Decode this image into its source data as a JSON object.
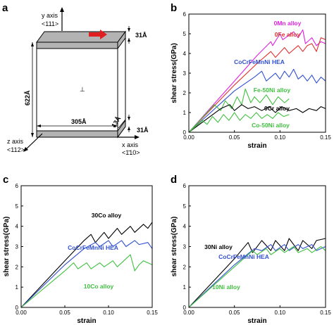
{
  "schematic": {
    "label": "a",
    "y_axis": "y axis",
    "y_dir": "<111>",
    "z_axis": "z axis",
    "z_dir": "<112>",
    "x_axis": "x axis",
    "x_dir": "<1̄10>",
    "height": "622Å",
    "width": "305Å",
    "depth": "13Å",
    "top_slab": "31Å",
    "bottom_slab": "31Å",
    "dislocation": "⊥",
    "colors": {
      "slab": "#b3b3b3",
      "arrow": "#e02020"
    }
  },
  "chart_data": [
    {
      "label": "b",
      "type": "line",
      "xlabel": "strain",
      "ylabel": "shear stress(GPa)",
      "xlim": [
        0,
        0.15
      ],
      "ylim": [
        0,
        6
      ],
      "xticks": [
        "0.00",
        "0.05",
        "0.10",
        "0.15"
      ],
      "yticks": [
        "0",
        "1",
        "2",
        "3",
        "4",
        "5",
        "6"
      ],
      "series": [
        {
          "name": "0Mn alloy",
          "color": "#e020e0",
          "x": [
            0,
            0.05,
            0.075,
            0.09,
            0.092,
            0.1,
            0.103,
            0.115,
            0.12,
            0.125,
            0.128,
            0.135,
            0.14,
            0.145,
            0.15
          ],
          "y": [
            0,
            2.6,
            3.9,
            4.6,
            4.4,
            5.0,
            4.7,
            5.1,
            4.8,
            5.2,
            4.5,
            4.8,
            4.4,
            4.6,
            4.5
          ]
        },
        {
          "name": "0Fe alloy",
          "color": "#e03030",
          "x": [
            0,
            0.05,
            0.075,
            0.09,
            0.095,
            0.105,
            0.11,
            0.12,
            0.125,
            0.13,
            0.135,
            0.14,
            0.145,
            0.15
          ],
          "y": [
            0,
            2.4,
            3.5,
            4.1,
            3.8,
            4.3,
            4.0,
            4.4,
            4.1,
            4.4,
            4.5,
            4.1,
            4.8,
            4.7
          ]
        },
        {
          "name": "CoCrFeMnNi HEA",
          "color": "#3050d0",
          "x": [
            0,
            0.05,
            0.072,
            0.08,
            0.085,
            0.095,
            0.1,
            0.105,
            0.11,
            0.115,
            0.12,
            0.125,
            0.13,
            0.135,
            0.14,
            0.145,
            0.15
          ],
          "y": [
            0,
            2.1,
            2.8,
            3.1,
            2.6,
            3.0,
            2.7,
            3.1,
            2.8,
            3.2,
            2.7,
            2.9,
            2.6,
            2.9,
            2.5,
            2.8,
            2.6
          ]
        },
        {
          "name": "Fe-50Ni alloy",
          "color": "#40c040",
          "x": [
            0,
            0.02,
            0.028,
            0.035,
            0.04,
            0.047,
            0.053,
            0.058,
            0.062,
            0.068,
            0.072,
            0.078,
            0.085,
            0.092,
            0.098,
            0.105,
            0.11
          ],
          "y": [
            0,
            1.0,
            1.4,
            1.1,
            1.6,
            1.2,
            1.8,
            1.4,
            2.2,
            1.5,
            1.8,
            1.5,
            1.9,
            1.4,
            1.8,
            1.5,
            1.7
          ]
        },
        {
          "name": "0Cr alloy",
          "color": "#000000",
          "x": [
            0,
            0.035,
            0.045,
            0.05,
            0.058,
            0.065,
            0.072,
            0.08,
            0.088,
            0.095,
            0.102,
            0.11,
            0.118,
            0.125,
            0.132,
            0.14,
            0.145,
            0.15
          ],
          "y": [
            0,
            1.2,
            1.4,
            1.1,
            1.4,
            1.2,
            1.3,
            1.1,
            1.3,
            1.0,
            1.3,
            1.1,
            1.2,
            1.0,
            1.2,
            1.1,
            1.3,
            1.2
          ]
        },
        {
          "name": "Co-50Ni alloy",
          "color": "#40c040",
          "x": [
            0,
            0.015,
            0.02,
            0.026,
            0.032,
            0.038,
            0.044,
            0.05,
            0.056,
            0.062,
            0.068,
            0.074,
            0.08,
            0.086,
            0.092,
            0.098,
            0.104,
            0.11
          ],
          "y": [
            0,
            0.6,
            0.4,
            0.8,
            0.5,
            0.9,
            0.6,
            1.0,
            0.6,
            0.9,
            0.7,
            1.0,
            0.7,
            0.9,
            0.7,
            1.0,
            0.8,
            0.9
          ]
        }
      ]
    },
    {
      "label": "c",
      "type": "line",
      "xlabel": "strain",
      "ylabel": "shear stress(GPa)",
      "xlim": [
        0,
        0.15
      ],
      "ylim": [
        0,
        6
      ],
      "xticks": [
        "0.00",
        "0.05",
        "0.10",
        "0.15"
      ],
      "yticks": [
        "0",
        "1",
        "2",
        "3",
        "4",
        "5",
        "6"
      ],
      "series": [
        {
          "name": "30Co alloy",
          "color": "#000000",
          "x": [
            0,
            0.05,
            0.072,
            0.08,
            0.085,
            0.095,
            0.1,
            0.11,
            0.115,
            0.125,
            0.13,
            0.14,
            0.145,
            0.15
          ],
          "y": [
            0,
            2.3,
            3.3,
            3.6,
            3.2,
            3.7,
            3.4,
            3.9,
            3.6,
            4.0,
            3.7,
            4.1,
            3.9,
            4.2
          ]
        },
        {
          "name": "CoCrFeMnNi HEA",
          "color": "#3050d0",
          "x": [
            0,
            0.05,
            0.072,
            0.085,
            0.09,
            0.1,
            0.105,
            0.115,
            0.12,
            0.13,
            0.135,
            0.145,
            0.15
          ],
          "y": [
            0,
            2.1,
            2.9,
            3.2,
            3.0,
            3.3,
            3.0,
            3.3,
            3.0,
            3.3,
            3.1,
            3.2,
            2.9
          ]
        },
        {
          "name": "10Co alloy",
          "color": "#40c040",
          "x": [
            0,
            0.05,
            0.06,
            0.065,
            0.075,
            0.08,
            0.09,
            0.095,
            0.105,
            0.11,
            0.12,
            0.125,
            0.13,
            0.135,
            0.14,
            0.15
          ],
          "y": [
            0,
            1.8,
            2.2,
            1.9,
            2.2,
            1.9,
            2.2,
            2.0,
            2.3,
            2.0,
            2.4,
            2.6,
            1.8,
            2.1,
            2.3,
            2.1
          ]
        }
      ]
    },
    {
      "label": "d",
      "type": "line",
      "xlabel": "strain",
      "ylabel": "shear stress(GPa)",
      "xlim": [
        0,
        0.15
      ],
      "ylim": [
        0,
        6
      ],
      "xticks": [
        "0.00",
        "0.05",
        "0.10",
        "0.15"
      ],
      "yticks": [
        "0",
        "1",
        "2",
        "3",
        "4",
        "5",
        "6"
      ],
      "series": [
        {
          "name": "30Ni alloy",
          "color": "#000000",
          "x": [
            0,
            0.05,
            0.065,
            0.07,
            0.08,
            0.09,
            0.095,
            0.105,
            0.11,
            0.12,
            0.125,
            0.135,
            0.14,
            0.15
          ],
          "y": [
            0,
            2.4,
            3.2,
            2.7,
            3.3,
            2.8,
            3.3,
            2.8,
            3.4,
            2.8,
            3.3,
            2.9,
            3.3,
            3.4
          ]
        },
        {
          "name": "CoCrFeMnNi HEA",
          "color": "#3050d0",
          "x": [
            0,
            0.05,
            0.072,
            0.08,
            0.09,
            0.095,
            0.105,
            0.11,
            0.12,
            0.125,
            0.135,
            0.14,
            0.15
          ],
          "y": [
            0,
            2.1,
            2.9,
            2.8,
            3.1,
            2.8,
            3.1,
            2.8,
            3.1,
            2.9,
            3.1,
            2.8,
            3.0
          ]
        },
        {
          "name": "10Ni alloy",
          "color": "#40c040",
          "x": [
            0,
            0.05,
            0.07,
            0.075,
            0.085,
            0.09,
            0.1,
            0.105,
            0.115,
            0.12,
            0.13,
            0.135,
            0.145,
            0.15
          ],
          "y": [
            0,
            2.0,
            2.8,
            2.6,
            2.9,
            2.6,
            2.9,
            2.7,
            3.0,
            2.7,
            2.9,
            2.7,
            3.0,
            2.8
          ]
        }
      ]
    }
  ]
}
